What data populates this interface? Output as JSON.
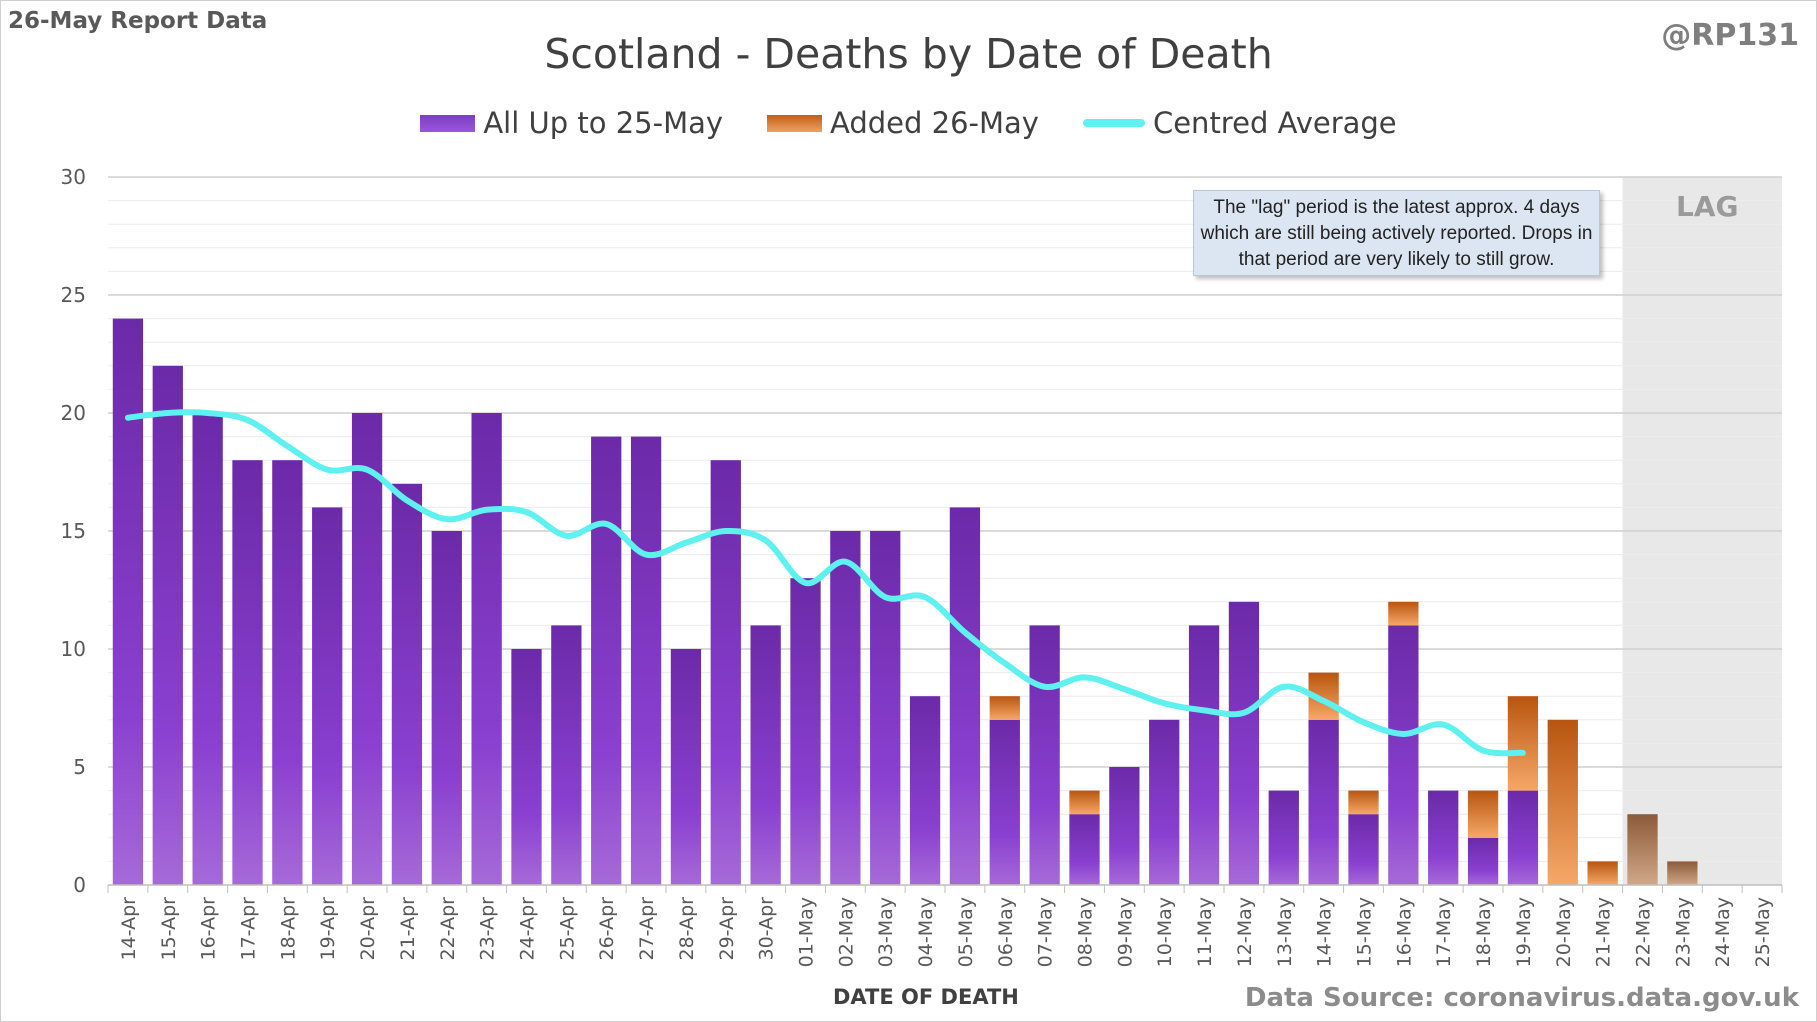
{
  "report_tag": "26-May Report Data",
  "handle": "@RP131",
  "source": "Data Source: coronavirus.data.gov.uk",
  "lag_note": "The \"lag\" period is the latest approx. 4 days which are still being actively reported.  Drops in that period are very likely to still grow.",
  "lag_label": "LAG",
  "colors": {
    "previous": "#7b35c2",
    "added": "#e07828",
    "average": "#5ff0f0",
    "lag_shade": "#e8e8e8"
  },
  "chart_data": {
    "type": "bar",
    "stacked": true,
    "title": "Scotland - Deaths by Date of Death",
    "xlabel": "DATE OF DEATH",
    "ylabel": "",
    "ylim": [
      0,
      30
    ],
    "yticks": [
      0,
      5,
      10,
      15,
      20,
      25,
      30
    ],
    "grid": true,
    "legend": "top-center",
    "lag_start": "22-May",
    "categories": [
      "14-Apr",
      "15-Apr",
      "16-Apr",
      "17-Apr",
      "18-Apr",
      "19-Apr",
      "20-Apr",
      "21-Apr",
      "22-Apr",
      "23-Apr",
      "24-Apr",
      "25-Apr",
      "26-Apr",
      "27-Apr",
      "28-Apr",
      "29-Apr",
      "30-Apr",
      "01-May",
      "02-May",
      "03-May",
      "04-May",
      "05-May",
      "06-May",
      "07-May",
      "08-May",
      "09-May",
      "10-May",
      "11-May",
      "12-May",
      "13-May",
      "14-May",
      "15-May",
      "16-May",
      "17-May",
      "18-May",
      "19-May",
      "20-May",
      "21-May",
      "22-May",
      "23-May",
      "24-May",
      "25-May"
    ],
    "series": [
      {
        "name": "All Up to 25-May",
        "type": "bar",
        "values": [
          24,
          22,
          20,
          18,
          18,
          16,
          20,
          17,
          15,
          20,
          10,
          11,
          19,
          19,
          10,
          18,
          11,
          13,
          15,
          15,
          8,
          16,
          7,
          11,
          3,
          5,
          7,
          11,
          12,
          4,
          7,
          3,
          11,
          4,
          2,
          4,
          0,
          0,
          0,
          0,
          0,
          0
        ]
      },
      {
        "name": "Added 26-May",
        "type": "bar",
        "values": [
          0,
          0,
          0,
          0,
          0,
          0,
          0,
          0,
          0,
          0,
          0,
          0,
          0,
          0,
          0,
          0,
          0,
          0,
          0,
          0,
          0,
          0,
          1,
          0,
          1,
          0,
          0,
          0,
          0,
          0,
          2,
          1,
          1,
          0,
          2,
          4,
          7,
          1,
          3,
          1,
          0,
          0
        ]
      },
      {
        "name": "Centred Average",
        "type": "line",
        "values": [
          19.8,
          20.0,
          20.0,
          19.7,
          18.6,
          17.6,
          17.6,
          16.3,
          15.5,
          15.9,
          15.8,
          14.8,
          15.3,
          14.0,
          14.5,
          15.0,
          14.6,
          12.8,
          13.7,
          12.2,
          12.2,
          10.7,
          9.4,
          8.4,
          8.8,
          8.3,
          7.7,
          7.4,
          7.3,
          8.4,
          7.8,
          6.9,
          6.4,
          6.8,
          5.7,
          5.6,
          null,
          null,
          null,
          null,
          null,
          null
        ]
      }
    ]
  }
}
